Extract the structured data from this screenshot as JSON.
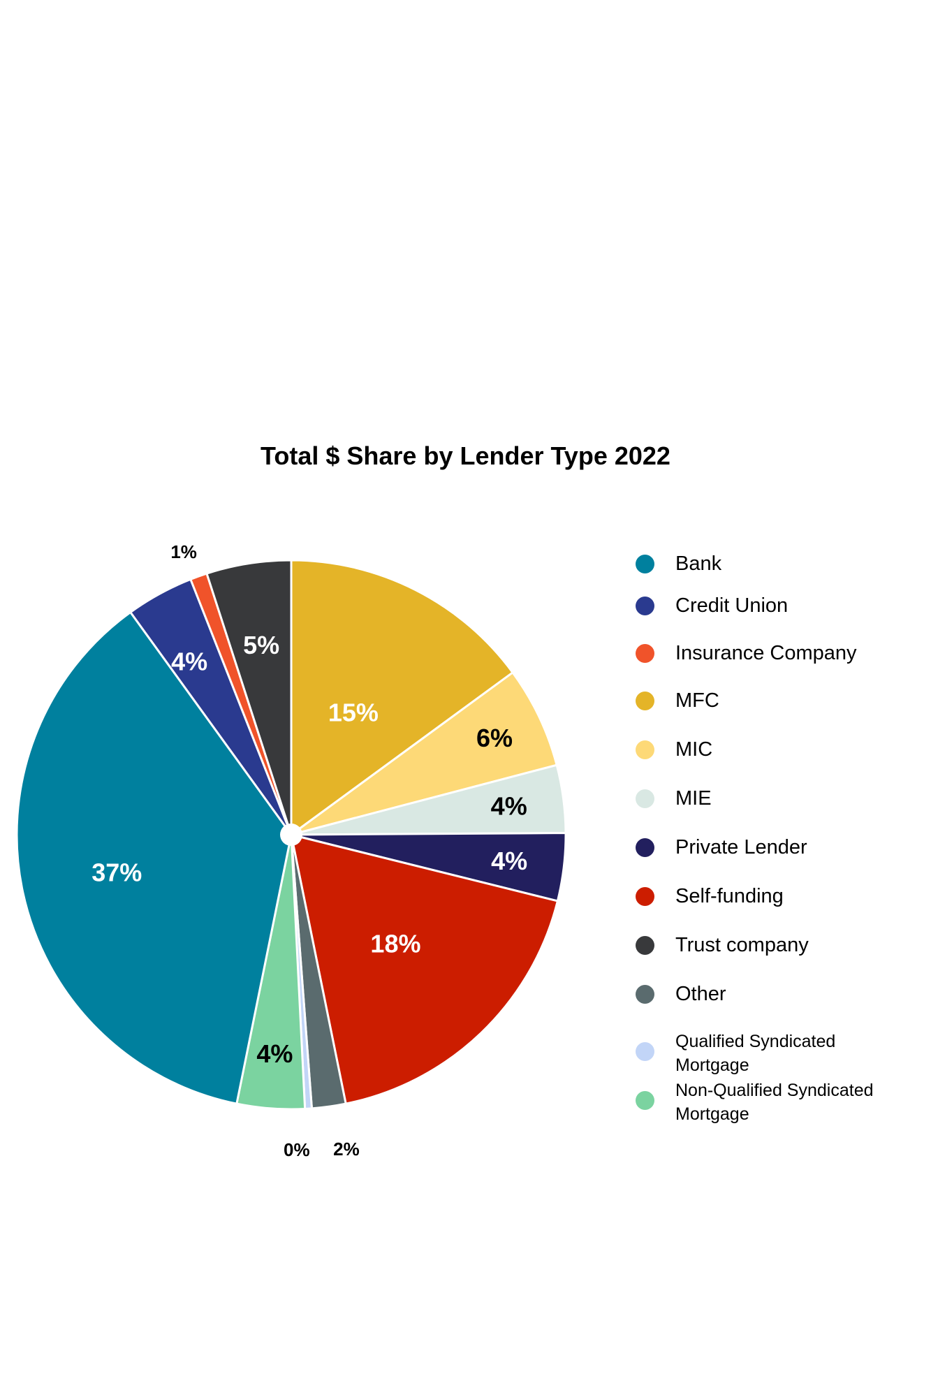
{
  "chart_data": {
    "type": "pie",
    "title": "Total $ Share by Lender Type 2022",
    "legend_position": "right",
    "slices": [
      {
        "name": "MFC",
        "value": 15,
        "label": "15%",
        "color": "#E4B428",
        "label_color": "#ffffff"
      },
      {
        "name": "MIC",
        "value": 6,
        "label": "6%",
        "color": "#FDD977",
        "label_color": "#000000"
      },
      {
        "name": "MIE",
        "value": 4,
        "label": "4%",
        "color": "#D9E8E3",
        "label_color": "#000000"
      },
      {
        "name": "Private Lender",
        "value": 4,
        "label": "4%",
        "color": "#221F5E",
        "label_color": "#ffffff"
      },
      {
        "name": "Self-funding",
        "value": 18,
        "label": "18%",
        "color": "#CC1D00",
        "label_color": "#ffffff"
      },
      {
        "name": "Other",
        "value": 2,
        "label": "2%",
        "color": "#5A6B6E",
        "label_color": "#000000"
      },
      {
        "name": "Qualified Syndicated Mortgage",
        "value": 0.4,
        "label": "0%",
        "color": "#C2D5F7",
        "label_color": "#000000"
      },
      {
        "name": "Non-Qualified Syndicated Mortgage",
        "value": 4,
        "label": "4%",
        "color": "#7BD3A0",
        "label_color": "#000000"
      },
      {
        "name": "Bank",
        "value": 37,
        "label": "37%",
        "color": "#00809E",
        "label_color": "#ffffff"
      },
      {
        "name": "Credit Union",
        "value": 4,
        "label": "4%",
        "color": "#2A3A8F",
        "label_color": "#ffffff"
      },
      {
        "name": "Insurance Company",
        "value": 1,
        "label": "1%",
        "color": "#F0532A",
        "label_color": "#000000"
      },
      {
        "name": "Trust company",
        "value": 5,
        "label": "5%",
        "color": "#38393B",
        "label_color": "#ffffff"
      }
    ]
  },
  "legend": [
    {
      "label": "Bank",
      "color": "#00809E"
    },
    {
      "label": "Credit Union",
      "color": "#2A3A8F"
    },
    {
      "label": "Insurance Company",
      "color": "#F0532A"
    },
    {
      "label": "MFC",
      "color": "#E4B428"
    },
    {
      "label": "MIC",
      "color": "#FDD977"
    },
    {
      "label": "MIE",
      "color": "#D9E8E3"
    },
    {
      "label": "Private Lender",
      "color": "#221F5E"
    },
    {
      "label": "Self-funding",
      "color": "#CC1D00"
    },
    {
      "label": "Trust company",
      "color": "#38393B"
    },
    {
      "label": "Other",
      "color": "#5A6B6E"
    },
    {
      "label": "Qualified Syndicated Mortgage",
      "color": "#C2D5F7"
    },
    {
      "label": "Non-Qualified Syndicated Mortgage",
      "color": "#7BD3A0"
    }
  ]
}
